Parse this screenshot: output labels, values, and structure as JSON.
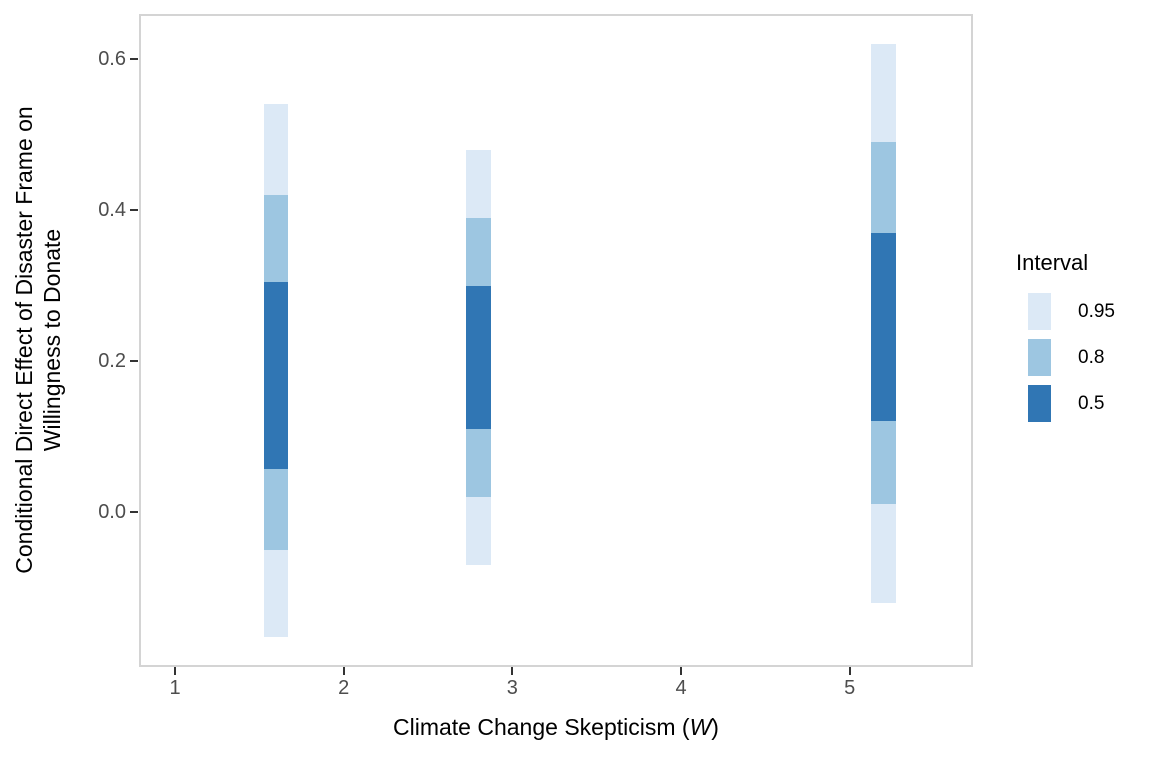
{
  "chart_data": {
    "type": "bar",
    "subtype": "nested-credible-interval-bars",
    "title": "",
    "xlabel": "Climate Change Skepticism (W)",
    "xlabel_prefix": "Climate Change Skepticism (",
    "xlabel_var": "W",
    "xlabel_suffix": ")",
    "ylabel": "Conditional Direct Effect of Disaster Frame on Willingness to Donate",
    "ylabel_line1": "Conditional Direct Effect of Disaster Frame on",
    "ylabel_line2": "Willingness to Donate",
    "x_ticks": [
      "1",
      "2",
      "3",
      "4",
      "5"
    ],
    "y_ticks": [
      "0.0",
      "0.2",
      "0.4",
      "0.6"
    ],
    "xlim": [
      0.79,
      5.72
    ],
    "ylim": [
      -0.2,
      0.66
    ],
    "grid": false,
    "legend": {
      "title": "Interval",
      "position": "right"
    },
    "levels": [
      {
        "label": "0.95",
        "color": "#DCE9F6"
      },
      {
        "label": "0.8",
        "color": "#9DC6E1"
      },
      {
        "label": "0.5",
        "color": "#3076B4"
      }
    ],
    "bars": [
      {
        "x": 1.6,
        "intervals": [
          {
            "level": "0.95",
            "lo": -0.165,
            "hi": 0.54
          },
          {
            "level": "0.8",
            "lo": -0.05,
            "hi": 0.42
          },
          {
            "level": "0.5",
            "lo": 0.057,
            "hi": 0.305
          }
        ]
      },
      {
        "x": 2.8,
        "intervals": [
          {
            "level": "0.95",
            "lo": -0.07,
            "hi": 0.48
          },
          {
            "level": "0.8",
            "lo": 0.02,
            "hi": 0.39
          },
          {
            "level": "0.5",
            "lo": 0.11,
            "hi": 0.3
          }
        ]
      },
      {
        "x": 5.2,
        "intervals": [
          {
            "level": "0.95",
            "lo": -0.12,
            "hi": 0.62
          },
          {
            "level": "0.8",
            "lo": 0.01,
            "hi": 0.49
          },
          {
            "level": "0.5",
            "lo": 0.12,
            "hi": 0.37
          }
        ]
      }
    ],
    "bar_width_data_units": 0.145,
    "colors": {
      "axis_text": "#4d4d4d",
      "axis_title": "#000000",
      "panel_border": "#d4d4d4",
      "tick_mark": "#333333"
    }
  }
}
